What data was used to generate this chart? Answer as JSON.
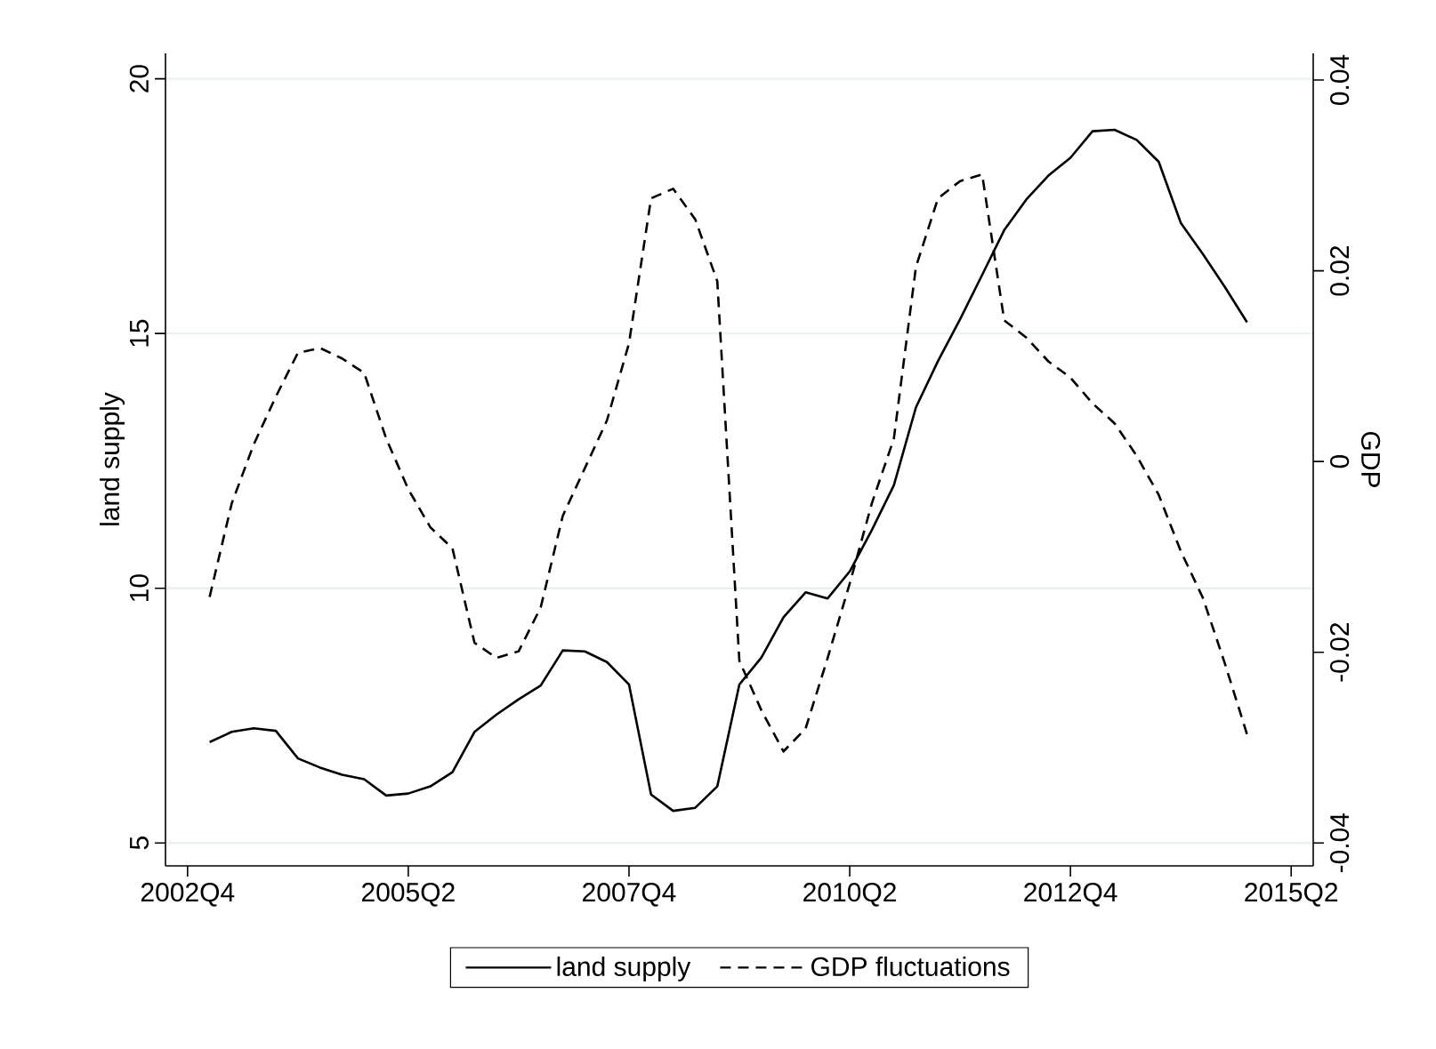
{
  "chart_data": {
    "type": "line",
    "ylabel": "land supply",
    "y2label": "GDP",
    "x": [
      "2003-01",
      "2003-04",
      "2003-07",
      "2003-10",
      "2004-01",
      "2004-04",
      "2004-07",
      "2004-10",
      "2005-01",
      "2005-04",
      "2005-07",
      "2005-10",
      "2006-01",
      "2006-04",
      "2006-07",
      "2006-10",
      "2007-01",
      "2007-04",
      "2007-07",
      "2007-10",
      "2008-01",
      "2008-04",
      "2008-07",
      "2008-10",
      "2009-01",
      "2009-04",
      "2009-07",
      "2009-10",
      "2010-01",
      "2010-04",
      "2010-07",
      "2010-10",
      "2011-01",
      "2011-04",
      "2011-07",
      "2011-10",
      "2012-01",
      "2012-04",
      "2012-07",
      "2012-10",
      "2013-01",
      "2013-04",
      "2013-07",
      "2013-10",
      "2014-01",
      "2014-04",
      "2014-07",
      "2014-10"
    ],
    "series": [
      {
        "name": "land supply",
        "color": "#000000",
        "line_style": "solid",
        "values": [
          6.98,
          7.18,
          7.25,
          7.2,
          6.66,
          6.48,
          6.34,
          6.25,
          5.93,
          5.97,
          6.11,
          6.39,
          7.18,
          7.52,
          7.82,
          8.09,
          8.78,
          8.76,
          8.55,
          8.11,
          5.95,
          5.63,
          5.69,
          6.11,
          8.11,
          8.64,
          9.43,
          9.92,
          9.8,
          10.33,
          11.14,
          12.02,
          13.55,
          14.46,
          15.28,
          16.15,
          17.03,
          17.63,
          18.1,
          18.45,
          18.97,
          19.0,
          18.8,
          18.37,
          17.17,
          16.56,
          15.91,
          15.22
        ]
      },
      {
        "name": "GDP fluctuations",
        "color": "#000000",
        "line_style": "dashed",
        "axis": "y2",
        "values": [
          -0.0142,
          -0.0044,
          0.0018,
          0.0068,
          0.0114,
          0.0119,
          0.0108,
          0.0093,
          0.0024,
          -0.0029,
          -0.0069,
          -0.0091,
          -0.019,
          -0.0206,
          -0.0199,
          -0.0153,
          -0.0057,
          -0.0007,
          0.0043,
          0.0124,
          0.0276,
          0.0286,
          0.0254,
          0.0189,
          -0.0209,
          -0.0261,
          -0.0304,
          -0.028,
          -0.0206,
          -0.0128,
          -0.0044,
          0.0024,
          0.0204,
          0.0276,
          0.0294,
          0.0301,
          0.0148,
          0.013,
          0.0105,
          0.0088,
          0.0061,
          0.004,
          0.0006,
          -0.0035,
          -0.0094,
          -0.0143,
          -0.0212,
          -0.0286
        ]
      }
    ],
    "xlim": [
      "2002-07",
      "2015-07"
    ],
    "xticks": [
      {
        "value": "2002-10",
        "label": "2002Q4"
      },
      {
        "value": "2005-04",
        "label": "2005Q2"
      },
      {
        "value": "2007-10",
        "label": "2007Q4"
      },
      {
        "value": "2010-04",
        "label": "2010Q2"
      },
      {
        "value": "2012-10",
        "label": "2012Q4"
      },
      {
        "value": "2015-04",
        "label": "2015Q2"
      }
    ],
    "ylim": [
      4.55,
      20.5
    ],
    "yticks": [
      5,
      10,
      15,
      20
    ],
    "y2lim": [
      -0.0424,
      0.0428
    ],
    "y2ticks": [
      -0.04,
      -0.02,
      0,
      0.02,
      0.04
    ],
    "grid": "y",
    "legend": "bottom",
    "marker": "none"
  }
}
